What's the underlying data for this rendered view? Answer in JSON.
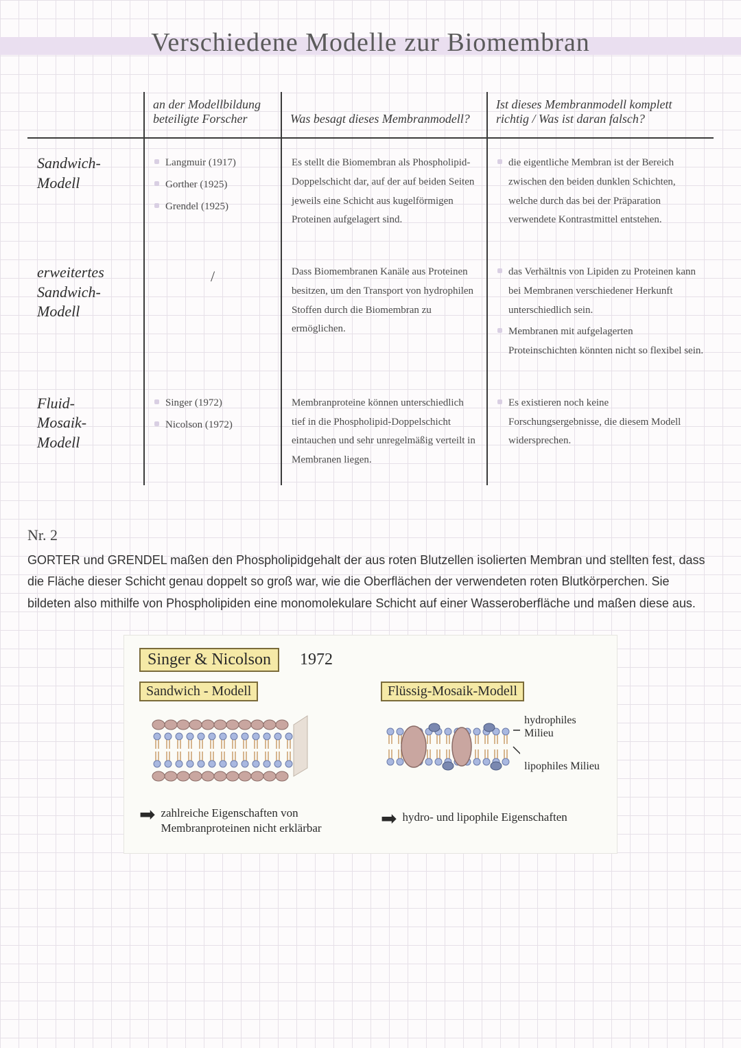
{
  "title": "Verschiedene Modelle zur Biomembran",
  "table": {
    "headers": [
      "",
      "an der Modellbildung beteiligte Forscher",
      "Was besagt dieses Membranmodell?",
      "Ist dieses Membranmodell komplett richtig / Was ist daran falsch?"
    ],
    "rows": [
      {
        "name": "Sandwich-Modell",
        "forscher": [
          "Langmuir (1917)",
          "Gorther (1925)",
          "Grendel (1925)"
        ],
        "besagt": "Es stellt die Biomembran als Phospholipid-Doppelschicht dar, auf der auf beiden Seiten jeweils eine Schicht aus kugelförmigen Proteinen aufgelagert sind.",
        "falsch": [
          "die eigentliche Membran ist der Bereich zwischen den beiden dunklen Schichten, welche durch das bei der Präparation verwendete Kontrastmittel entstehen."
        ]
      },
      {
        "name": "erweitertes Sandwich-Modell",
        "forscher_text": "/",
        "besagt": "Dass Biomembranen Kanäle aus Proteinen besitzen, um den Transport von hydrophilen Stoffen durch die Biomembran zu ermöglichen.",
        "falsch": [
          "das Verhältnis von Lipiden zu Proteinen kann bei Membranen verschiedener Herkunft unterschiedlich sein.",
          "Membranen mit aufgelagerten Proteinschichten könnten nicht so flexibel sein."
        ]
      },
      {
        "name": "Fluid-Mosaik-Modell",
        "forscher": [
          "Singer (1972)",
          "Nicolson (1972)"
        ],
        "besagt": "Membranproteine können unterschiedlich tief in die Phospholipid-Doppelschicht eintauchen und sehr unregelmäßig verteilt in Membranen liegen.",
        "falsch": [
          "Es existieren noch keine Forschungsergebnisse, die diesem Modell widersprechen."
        ]
      }
    ]
  },
  "nr2_label": "Nr. 2",
  "nr2_text": "GORTER und GRENDEL maßen den Phospholipidgehalt der aus roten Blutzellen isolierten Membran und stellten fest, dass die Fläche dieser Schicht genau doppelt so groß war, wie die Oberflächen der verwendeten roten Blutkörperchen. Sie bildeten also mithilfe von Phospholipiden eine monomolekulare Schicht auf einer Wasseroberfläche und maßen diese aus.",
  "diagram": {
    "authors": "Singer & Nicolson",
    "year": "1972",
    "left_label": "Sandwich - Modell",
    "right_label": "Flüssig-Mosaik-Modell",
    "left_note": "zahlreiche Eigenschaften von Membranproteinen nicht erklärbar",
    "right_note": "hydro- und lipophile Eigenschaften",
    "annot_top": "hydrophiles Milieu",
    "annot_mid": "lipophiles Milieu",
    "colors": {
      "highlight_bg": "#f5e9a6",
      "highlight_border": "#7a6b3a",
      "head": "#a9b8e0",
      "head_stroke": "#6a7aa8",
      "tail": "#d6b58e",
      "protein": "#c9a6a0",
      "protein_stroke": "#8a6b66",
      "arrow": "#2a2a2a"
    }
  }
}
